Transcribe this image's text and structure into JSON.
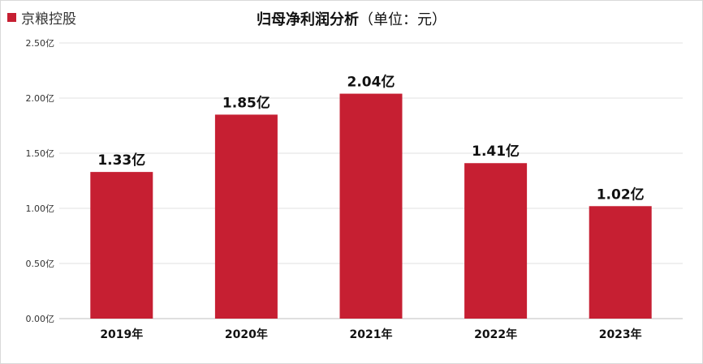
{
  "legend": {
    "label": "京粮控股",
    "color": "#c61f32"
  },
  "title": {
    "main": "归母净利润分析",
    "unit": "（单位：元）"
  },
  "chart_data": {
    "type": "bar",
    "title": "归母净利润分析（单位：元）",
    "categories": [
      "2019年",
      "2020年",
      "2021年",
      "2022年",
      "2023年"
    ],
    "series": [
      {
        "name": "京粮控股",
        "values": [
          1.33,
          1.85,
          2.04,
          1.41,
          1.02
        ],
        "data_labels": [
          "1.33亿",
          "1.85亿",
          "2.04亿",
          "1.41亿",
          "1.02亿"
        ],
        "color": "#c61f32"
      }
    ],
    "yticks": [
      {
        "value": 0,
        "label": "0.00亿"
      },
      {
        "value": 0.5,
        "label": "0.50亿"
      },
      {
        "value": 1.0,
        "label": "1.00亿"
      },
      {
        "value": 1.5,
        "label": "1.50亿"
      },
      {
        "value": 2.0,
        "label": "2.00亿"
      },
      {
        "value": 2.5,
        "label": "2.50亿"
      }
    ],
    "ylim": [
      0,
      2.5
    ],
    "grid": true,
    "legend_position": "top-left"
  }
}
